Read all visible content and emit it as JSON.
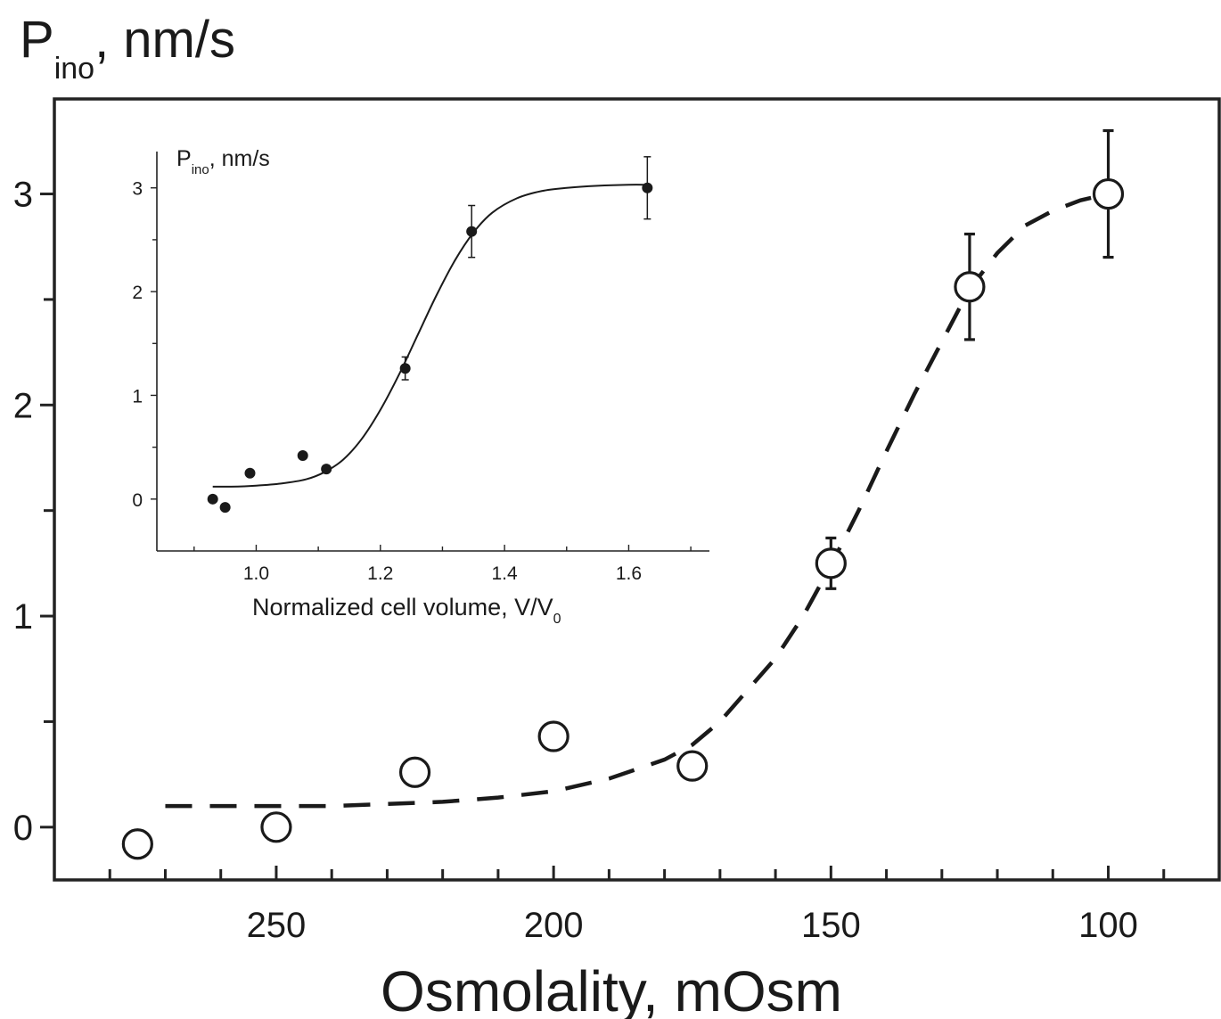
{
  "chart_data": [
    {
      "type": "scatter",
      "title": "",
      "ylabel_main": "P",
      "ylabel_sub": "ino",
      "ylabel_unit": ", nm/s",
      "xlabel": "Osmolality, mOsm",
      "x_reversed": true,
      "xlim": [
        290,
        80
      ],
      "ylim": [
        -0.25,
        3.45
      ],
      "x_major_ticks": [
        250,
        200,
        150,
        100
      ],
      "x_major_tick_labels": [
        "250",
        "200",
        "150",
        "100"
      ],
      "x_minor_ticks": [
        280,
        270,
        260,
        240,
        230,
        220,
        210,
        190,
        180,
        170,
        160,
        140,
        130,
        120,
        110,
        90
      ],
      "y_major_ticks": [
        0,
        1,
        2,
        3
      ],
      "y_major_tick_labels": [
        "0",
        "1",
        "2",
        "3"
      ],
      "y_minor_ticks": [
        0.5,
        1.5,
        2.5
      ],
      "grid": false,
      "series": [
        {
          "marker": "open-circle",
          "x": [
            275,
            250,
            225,
            200,
            175,
            150,
            125,
            100
          ],
          "y": [
            -0.08,
            0.0,
            0.26,
            0.43,
            0.29,
            1.25,
            2.56,
            3.0
          ],
          "err": [
            null,
            null,
            null,
            null,
            null,
            0.12,
            0.25,
            0.3
          ]
        }
      ],
      "fit_curve": {
        "style": "dashed",
        "x": [
          270,
          260,
          250,
          240,
          230,
          220,
          210,
          200,
          190,
          180,
          175,
          170,
          160,
          155,
          150,
          145,
          140,
          135,
          130,
          125,
          120,
          115,
          110,
          105,
          100
        ],
        "y": [
          0.1,
          0.1,
          0.1,
          0.1,
          0.11,
          0.12,
          0.14,
          0.17,
          0.23,
          0.32,
          0.39,
          0.5,
          0.8,
          1.0,
          1.24,
          1.5,
          1.78,
          2.05,
          2.3,
          2.55,
          2.72,
          2.85,
          2.92,
          2.97,
          3.0
        ]
      },
      "color": "#1a1a1a"
    },
    {
      "type": "scatter",
      "inset": true,
      "ylabel_main": "P",
      "ylabel_sub": "ino",
      "ylabel_unit": ", nm/s",
      "xlabel_main": "Normalized cell volume, V/V",
      "xlabel_sub": "0",
      "xlim": [
        0.84,
        1.73
      ],
      "ylim": [
        -0.5,
        3.35
      ],
      "x_major_ticks": [
        1.0,
        1.2,
        1.4,
        1.6
      ],
      "x_major_tick_labels": [
        "1.0",
        "1.2",
        "1.4",
        "1.6"
      ],
      "x_minor_ticks": [
        0.9,
        1.1,
        1.3,
        1.5,
        1.7
      ],
      "y_major_ticks": [
        0,
        1,
        2,
        3
      ],
      "y_major_tick_labels": [
        "0",
        "1",
        "2",
        "3"
      ],
      "y_minor_ticks": [
        0.5,
        1.5,
        2.5
      ],
      "series": [
        {
          "marker": "filled-circle",
          "x": [
            0.93,
            0.95,
            0.99,
            1.075,
            1.113,
            1.24,
            1.347,
            1.63
          ],
          "y": [
            0.0,
            -0.08,
            0.25,
            0.42,
            0.29,
            1.26,
            2.58,
            3.0
          ],
          "err": [
            null,
            null,
            null,
            null,
            null,
            0.11,
            0.25,
            0.3
          ]
        }
      ],
      "fit_curve": {
        "style": "solid",
        "x": [
          0.93,
          0.96,
          1.0,
          1.04,
          1.08,
          1.11,
          1.14,
          1.17,
          1.2,
          1.23,
          1.26,
          1.29,
          1.32,
          1.35,
          1.38,
          1.42,
          1.46,
          1.5,
          1.55,
          1.6,
          1.63
        ],
        "y": [
          0.12,
          0.12,
          0.13,
          0.15,
          0.19,
          0.26,
          0.38,
          0.58,
          0.86,
          1.2,
          1.58,
          1.96,
          2.3,
          2.57,
          2.76,
          2.9,
          2.97,
          3.0,
          3.02,
          3.03,
          3.03
        ]
      },
      "color": "#1a1a1a"
    }
  ]
}
